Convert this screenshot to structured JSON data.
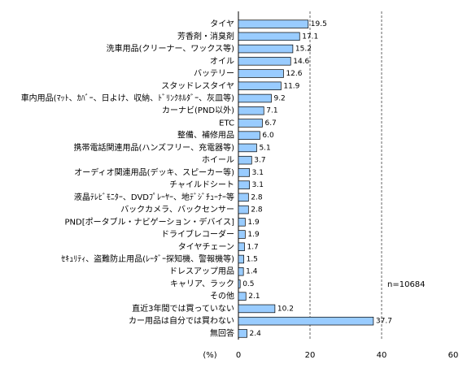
{
  "chart_data": {
    "type": "bar",
    "orientation": "horizontal",
    "categories": [
      "タイヤ",
      "芳香剤・消臭剤",
      "洗車用品(クリーナー、ワックス等)",
      "オイル",
      "バッテリー",
      "スタッドレスタイヤ",
      "車内用品(ﾏｯﾄ、ｶﾊﾞｰ、日よけ、収納、ﾄﾞﾘﾝｸﾎﾙﾀﾞｰ、灰皿等)",
      "カーナビ(PND以外)",
      "ETC",
      "整備、補修用品",
      "携帯電話関連用品(ハンズフリー、充電器等)",
      "ホイール",
      "オーディオ関連用品(デッキ、スピーカー等)",
      "チャイルドシート",
      "液晶ﾃﾚﾋﾞﾓﾆﾀｰ、DVDﾌﾟﾚｰﾔｰ、地ﾃﾞｼﾞﾁｭｰﾅｰ等",
      "バックカメラ、バックセンサー",
      "PND[ポータブル・ナビゲーション・デバイス]",
      "ドライブレコーダー",
      "タイヤチェーン",
      "ｾｷｭﾘﾃｨ、盗難防止用品(ﾚｰﾀﾞｰ探知機、警報機等)",
      "ドレスアップ用品",
      "キャリア、ラック",
      "その他",
      "直近3年間では買っていない",
      "カー用品は自分では買わない",
      "無回答"
    ],
    "values": [
      19.5,
      17.1,
      15.2,
      14.6,
      12.6,
      11.9,
      9.2,
      7.1,
      6.7,
      6.0,
      5.1,
      3.7,
      3.1,
      3.1,
      2.8,
      2.8,
      1.9,
      1.9,
      1.7,
      1.5,
      1.4,
      0.5,
      2.1,
      10.2,
      37.7,
      2.4
    ],
    "value_labels": [
      "19.5",
      "17.1",
      "15.2",
      "14.6",
      "12.6",
      "11.9",
      "9.2",
      "7.1",
      "6.7",
      "6.0",
      "5.1",
      "3.7",
      "3.1",
      "3.1",
      "2.8",
      "2.8",
      "1.9",
      "1.9",
      "1.7",
      "1.5",
      "1.4",
      "0.5",
      "2.1",
      "10.2",
      "37.7",
      "2.4"
    ],
    "color": "#99ccff",
    "xlim": [
      0,
      60
    ],
    "xticks": [
      0,
      20,
      40,
      60
    ],
    "grid": true,
    "x_label": "(%)",
    "annotation": "n=10684"
  }
}
